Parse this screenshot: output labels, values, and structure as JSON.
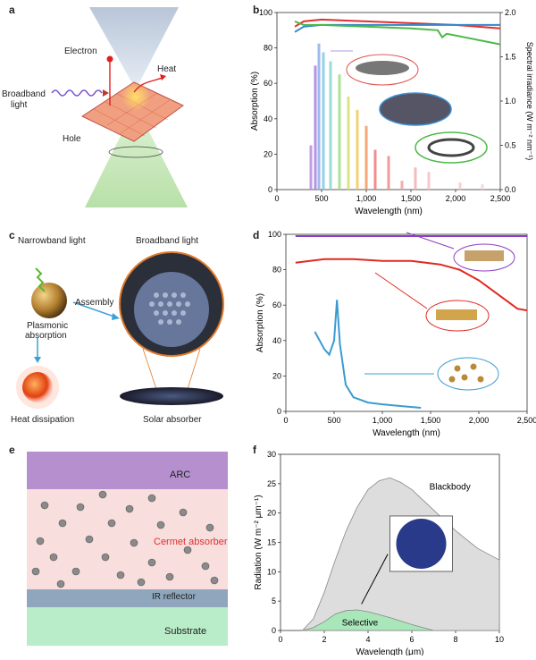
{
  "panel_letters": {
    "a": "a",
    "b": "b",
    "c": "c",
    "d": "d",
    "e": "e",
    "f": "f"
  },
  "panel_a": {
    "electron": "Electron",
    "heat": "Heat",
    "broadband": "Broadband",
    "light": "light",
    "hole": "Hole"
  },
  "panel_c": {
    "narrowband": "Narrowband light",
    "broadband": "Broadband light",
    "assembly": "Assembly",
    "plasmonic": "Plasmonic",
    "absorption": "absorption",
    "heat_dissipation": "Heat dissipation",
    "solar_absorber": "Solar absorber"
  },
  "panel_e": {
    "arc": "ARC",
    "cermet": "Cermet absorber",
    "ir": "IR reflector",
    "substrate": "Substrate",
    "colors": {
      "arc": "#b58fce",
      "cermet": "#f9dede",
      "ir": "#8fa6bd",
      "substrate": "#b9ecc9"
    }
  },
  "chart_data": [
    {
      "id": "b",
      "type": "line",
      "xlabel": "Wavelength (nm)",
      "ylabel": "Absorption (%)",
      "y2label": "Spectral irradiance (W m⁻² nm⁻¹)",
      "xlim": [
        0,
        2500
      ],
      "ylim": [
        0,
        100
      ],
      "y2lim": [
        0,
        2.0
      ],
      "xticks": [
        "0",
        "500",
        "1,000",
        "1,500",
        "2,000",
        "2,500"
      ],
      "yticks": [
        "0",
        "20",
        "40",
        "60",
        "80",
        "100"
      ],
      "y2ticks": [
        "0.0",
        "0.5",
        "1.0",
        "1.5",
        "2.0"
      ],
      "series": [
        {
          "color": "#e03030",
          "x": [
            200,
            300,
            500,
            1000,
            1500,
            2000,
            2500
          ],
          "y": [
            92,
            95,
            96,
            95,
            94,
            93,
            91
          ]
        },
        {
          "color": "#3388cc",
          "x": [
            200,
            300,
            500,
            1000,
            1500,
            2000,
            2500
          ],
          "y": [
            89,
            92,
            93,
            93,
            93,
            93,
            93
          ]
        },
        {
          "color": "#4cb848",
          "x": [
            200,
            300,
            500,
            1000,
            1500,
            1800,
            1850,
            1900,
            2000,
            2500
          ],
          "y": [
            95,
            93,
            93,
            92,
            91,
            90,
            86,
            88,
            87,
            82
          ]
        }
      ],
      "irradiance_peaks": [
        {
          "x": 380,
          "y": 0.5
        },
        {
          "x": 430,
          "y": 1.4
        },
        {
          "x": 470,
          "y": 1.65
        },
        {
          "x": 520,
          "y": 1.55
        },
        {
          "x": 600,
          "y": 1.45
        },
        {
          "x": 700,
          "y": 1.3
        },
        {
          "x": 800,
          "y": 1.05
        },
        {
          "x": 900,
          "y": 0.9
        },
        {
          "x": 1000,
          "y": 0.72
        },
        {
          "x": 1100,
          "y": 0.45
        },
        {
          "x": 1250,
          "y": 0.38
        },
        {
          "x": 1400,
          "y": 0.1
        },
        {
          "x": 1550,
          "y": 0.25
        },
        {
          "x": 1700,
          "y": 0.2
        },
        {
          "x": 2050,
          "y": 0.08
        },
        {
          "x": 2300,
          "y": 0.06
        }
      ]
    },
    {
      "id": "d",
      "type": "line",
      "xlabel": "Wavelength (nm)",
      "ylabel": "Absorption (%)",
      "xlim": [
        0,
        2500
      ],
      "ylim": [
        0,
        100
      ],
      "xticks": [
        "0",
        "500",
        "1,000",
        "1,500",
        "2,000",
        "2,500"
      ],
      "yticks": [
        "0",
        "20",
        "40",
        "60",
        "80",
        "100"
      ],
      "series": [
        {
          "color": "#8b3fc1",
          "x": [
            100,
            2500
          ],
          "y": [
            99,
            99
          ]
        },
        {
          "color": "#e02a20",
          "x": [
            100,
            400,
            700,
            1000,
            1300,
            1600,
            1800,
            2000,
            2200,
            2400,
            2500
          ],
          "y": [
            84,
            86,
            86,
            85,
            85,
            83,
            80,
            74,
            66,
            58,
            57
          ]
        },
        {
          "color": "#3b9bd0",
          "x": [
            300,
            400,
            450,
            500,
            530,
            560,
            620,
            700,
            850,
            1000,
            1200,
            1400
          ],
          "y": [
            45,
            35,
            32,
            40,
            63,
            38,
            15,
            8,
            5,
            4,
            3,
            2
          ]
        }
      ]
    },
    {
      "id": "f",
      "type": "area",
      "xlabel": "Wavelength (μm)",
      "ylabel": "Radiation (W m⁻² μm⁻¹)",
      "xlim": [
        0,
        10
      ],
      "ylim": [
        0,
        30
      ],
      "xticks": [
        "0",
        "2",
        "4",
        "6",
        "8",
        "10"
      ],
      "yticks": [
        "0",
        "5",
        "10",
        "15",
        "20",
        "25",
        "30"
      ],
      "series": [
        {
          "name": "Blackbody",
          "color": "#dddddd",
          "x": [
            1,
            1.5,
            2,
            2.5,
            3,
            3.5,
            4,
            4.5,
            5,
            5.5,
            6,
            7,
            8,
            9,
            10
          ],
          "y": [
            0,
            2,
            6.5,
            12,
            17,
            21,
            24,
            25.5,
            26,
            25.2,
            24,
            20.5,
            17,
            14,
            12
          ]
        },
        {
          "name": "Selective",
          "color": "#a9e6b9",
          "x": [
            1,
            1.5,
            2,
            2.5,
            3,
            3.5,
            4,
            4.5,
            5,
            5.5,
            6,
            7
          ],
          "y": [
            0,
            0.5,
            1.5,
            2.8,
            3.4,
            3.5,
            3.2,
            2.7,
            2.2,
            1.6,
            1.0,
            0
          ]
        }
      ]
    }
  ]
}
